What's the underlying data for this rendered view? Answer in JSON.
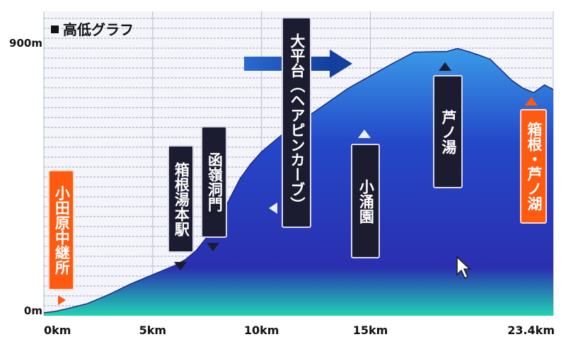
{
  "chart_data": {
    "type": "area",
    "title": "高低グラフ",
    "y_ticks": [
      "0m",
      "900m"
    ],
    "ylim": [
      0,
      900
    ],
    "x_ticks": [
      {
        "value": 0,
        "label": "0km"
      },
      {
        "value": 5,
        "label": "5km"
      },
      {
        "value": 10,
        "label": "10km"
      },
      {
        "value": 15,
        "label": "15km"
      },
      {
        "value": 23.4,
        "label": "23.4km"
      }
    ],
    "xlim": [
      0,
      23.4
    ],
    "grid": true,
    "series": [
      {
        "x": [
          0,
          0.5,
          1,
          2,
          3,
          4,
          5,
          6,
          6.5,
          7,
          7.5,
          8,
          8.5,
          9,
          9.5,
          10,
          10.5,
          11,
          12,
          13,
          14,
          15,
          16,
          17,
          18,
          18.5,
          19,
          19.5,
          20,
          20.5,
          21,
          21.5,
          22,
          22.5,
          23,
          23.4
        ],
        "y": [
          10,
          14,
          22,
          40,
          70,
          105,
          135,
          165,
          185,
          215,
          260,
          310,
          380,
          450,
          500,
          540,
          570,
          600,
          650,
          700,
          750,
          790,
          830,
          868,
          870,
          870,
          880,
          870,
          858,
          845,
          810,
          775,
          750,
          735,
          760,
          745
        ]
      }
    ]
  },
  "markers": {
    "odawara": "小田原中継所",
    "hakone_yumoto": "箱根湯本駅",
    "hakone_tunnel": "函嶺洞門",
    "ohiradai": "大平台（ヘアピンカーブ）",
    "kowakien": "小涌園",
    "ashinoyu": "芦ノ湯",
    "ashinoko": "箱根・芦ノ湖"
  },
  "colors": {
    "area_top": "#2e7fe0",
    "area_mid": "#2233bb",
    "area_bottom": "#20d4b4",
    "arrow": "#1e56b8",
    "orange": "#ff5a12"
  }
}
